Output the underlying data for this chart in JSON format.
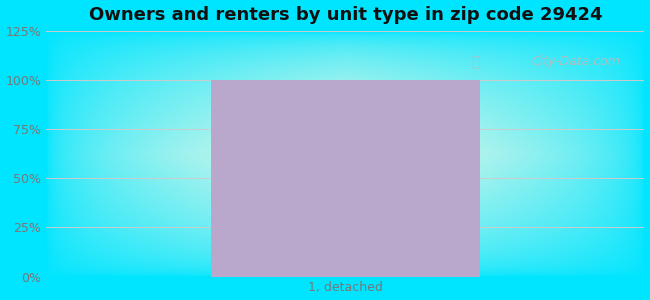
{
  "title": "Owners and renters by unit type in zip code 29424",
  "title_fontsize": 13,
  "title_fontweight": "bold",
  "categories": [
    "1, detached"
  ],
  "values": [
    100
  ],
  "bar_color": "#b9a8cc",
  "bar_width": 0.45,
  "ylim": [
    0,
    125
  ],
  "yticks": [
    0,
    25,
    50,
    75,
    100,
    125
  ],
  "yticklabels": [
    "0%",
    "25%",
    "50%",
    "75%",
    "100%",
    "125%"
  ],
  "xlabel_fontsize": 9,
  "tick_color": "#777777",
  "grid_color": "#cccccc",
  "watermark_text": "City-Data.com",
  "bg_outer_color": "#00e5ff",
  "fig_width": 6.5,
  "fig_height": 3.0,
  "dpi": 100
}
